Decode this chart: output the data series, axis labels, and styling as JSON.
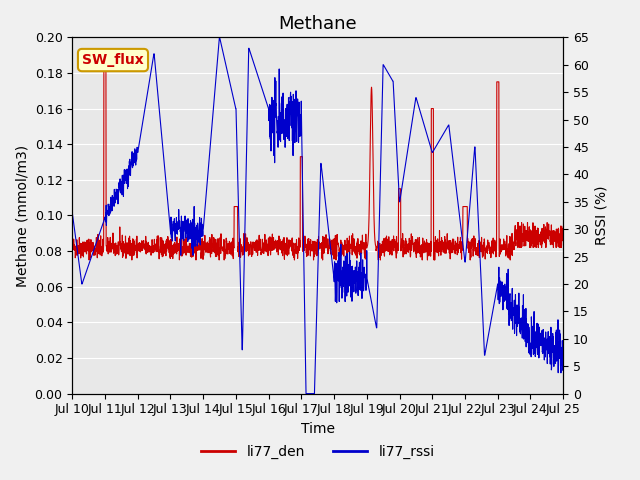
{
  "title": "Methane",
  "xlabel": "Time",
  "ylabel_left": "Methane (mmol/m3)",
  "ylabel_right": "RSSI (%)",
  "ylim_left": [
    0.0,
    0.2
  ],
  "ylim_right": [
    0,
    65
  ],
  "yticks_left": [
    0.0,
    0.02,
    0.04,
    0.06,
    0.08,
    0.1,
    0.12,
    0.14,
    0.16,
    0.18,
    0.2
  ],
  "yticks_right": [
    0,
    5,
    10,
    15,
    20,
    25,
    30,
    35,
    40,
    45,
    50,
    55,
    60,
    65
  ],
  "xtick_labels": [
    "Jul 10",
    "Jul 11",
    "Jul 12",
    "Jul 13",
    "Jul 14",
    "Jul 15",
    "Jul 16",
    "Jul 17",
    "Jul 18",
    "Jul 19",
    "Jul 20",
    "Jul 21",
    "Jul 22",
    "Jul 23",
    "Jul 24",
    "Jul 25"
  ],
  "color_red": "#cc0000",
  "color_blue": "#0000cc",
  "legend_label_red": "li77_den",
  "legend_label_blue": "li77_rssi",
  "annotation_text": "SW_flux",
  "annotation_color": "#cc0000",
  "annotation_bg": "#ffffcc",
  "annotation_border": "#cc9900",
  "bg_color": "#e8e8e8",
  "grid_color": "#ffffff",
  "title_fontsize": 13,
  "axis_fontsize": 10,
  "tick_fontsize": 9
}
